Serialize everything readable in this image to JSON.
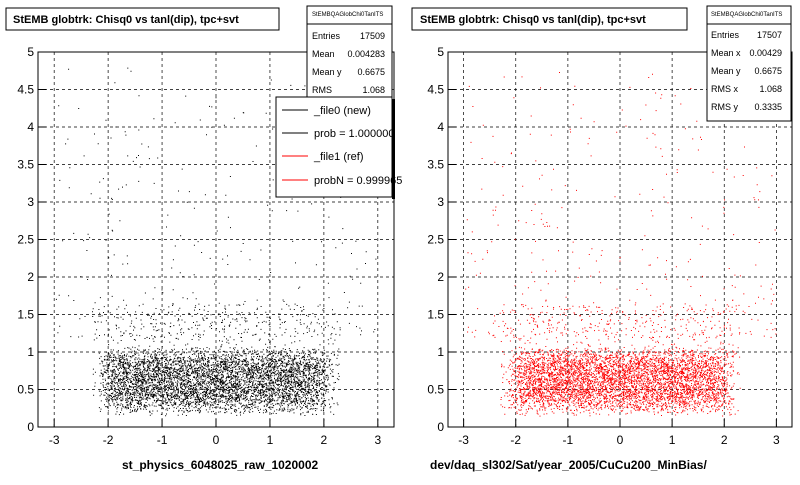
{
  "chart_data": [
    {
      "type": "scatter",
      "title": "StEMB globtrk: Chisq0 vs tanl(dip), tpc+svt",
      "xlabel": "st_physics_6048025_raw_1020002",
      "ylabel": "",
      "xlim": [
        -3.3,
        3.3
      ],
      "ylim": [
        0,
        5
      ],
      "xticks": [
        "-3",
        "-2",
        "-1",
        "0",
        "1",
        "2",
        "3"
      ],
      "yticks": [
        "0",
        "0.5",
        "1",
        "1.5",
        "2",
        "2.5",
        "3",
        "3.5",
        "4",
        "4.5",
        "5"
      ],
      "grid": true,
      "marker_color": "#000000",
      "stats": {
        "title": "StEMBQAGlobChi0TanITS",
        "entries_label": "Entries",
        "entries": "17509",
        "mean_label": "Mean",
        "mean": "0.004283",
        "meany_label": "Mean y",
        "meany": "0.6675",
        "rms_label": "RMS",
        "rms": "1.068"
      },
      "legend": {
        "placement": "top-right",
        "entries": [
          {
            "label": "_file0 (new)",
            "color": "#000000"
          },
          {
            "label": "prob = 1.000000",
            "color": "#000000"
          },
          {
            "label": "_file1 (ref)",
            "color": "#ff0000"
          },
          {
            "label": "probN = 0.999965",
            "color": "#ff0000"
          }
        ]
      },
      "distribution": {
        "x_center": 0,
        "x_halfwidth": 2.0,
        "y_center": 0.62,
        "y_core": [
          0.3,
          0.95
        ],
        "total_entries": 17509
      }
    },
    {
      "type": "scatter",
      "title": "StEMB globtrk: Chisq0 vs tanl(dip), tpc+svt",
      "xlabel": "dev/daq_sl302/Sat/year_2005/CuCu200_MinBias/",
      "ylabel": "",
      "xlim": [
        -3.3,
        3.3
      ],
      "ylim": [
        0,
        5
      ],
      "xticks": [
        "-3",
        "-2",
        "-1",
        "0",
        "1",
        "2",
        "3"
      ],
      "yticks": [
        "0",
        "0.5",
        "1",
        "1.5",
        "2",
        "2.5",
        "3",
        "3.5",
        "4",
        "4.5",
        "5"
      ],
      "grid": true,
      "marker_color": "#ff0000",
      "stats": {
        "title": "StEMBQAGlobChi0TanITS",
        "entries_label": "Entries",
        "entries": "17507",
        "meanx_label": "Mean x",
        "meanx": "0.00429",
        "meany_label": "Mean y",
        "meany": "0.6675",
        "rmsx_label": "RMS x",
        "rmsx": "1.068",
        "rmsy_label": "RMS y",
        "rmsy": "0.3335"
      },
      "distribution": {
        "x_center": 0,
        "x_halfwidth": 2.0,
        "y_center": 0.62,
        "y_core": [
          0.3,
          0.95
        ],
        "total_entries": 17507
      }
    }
  ]
}
